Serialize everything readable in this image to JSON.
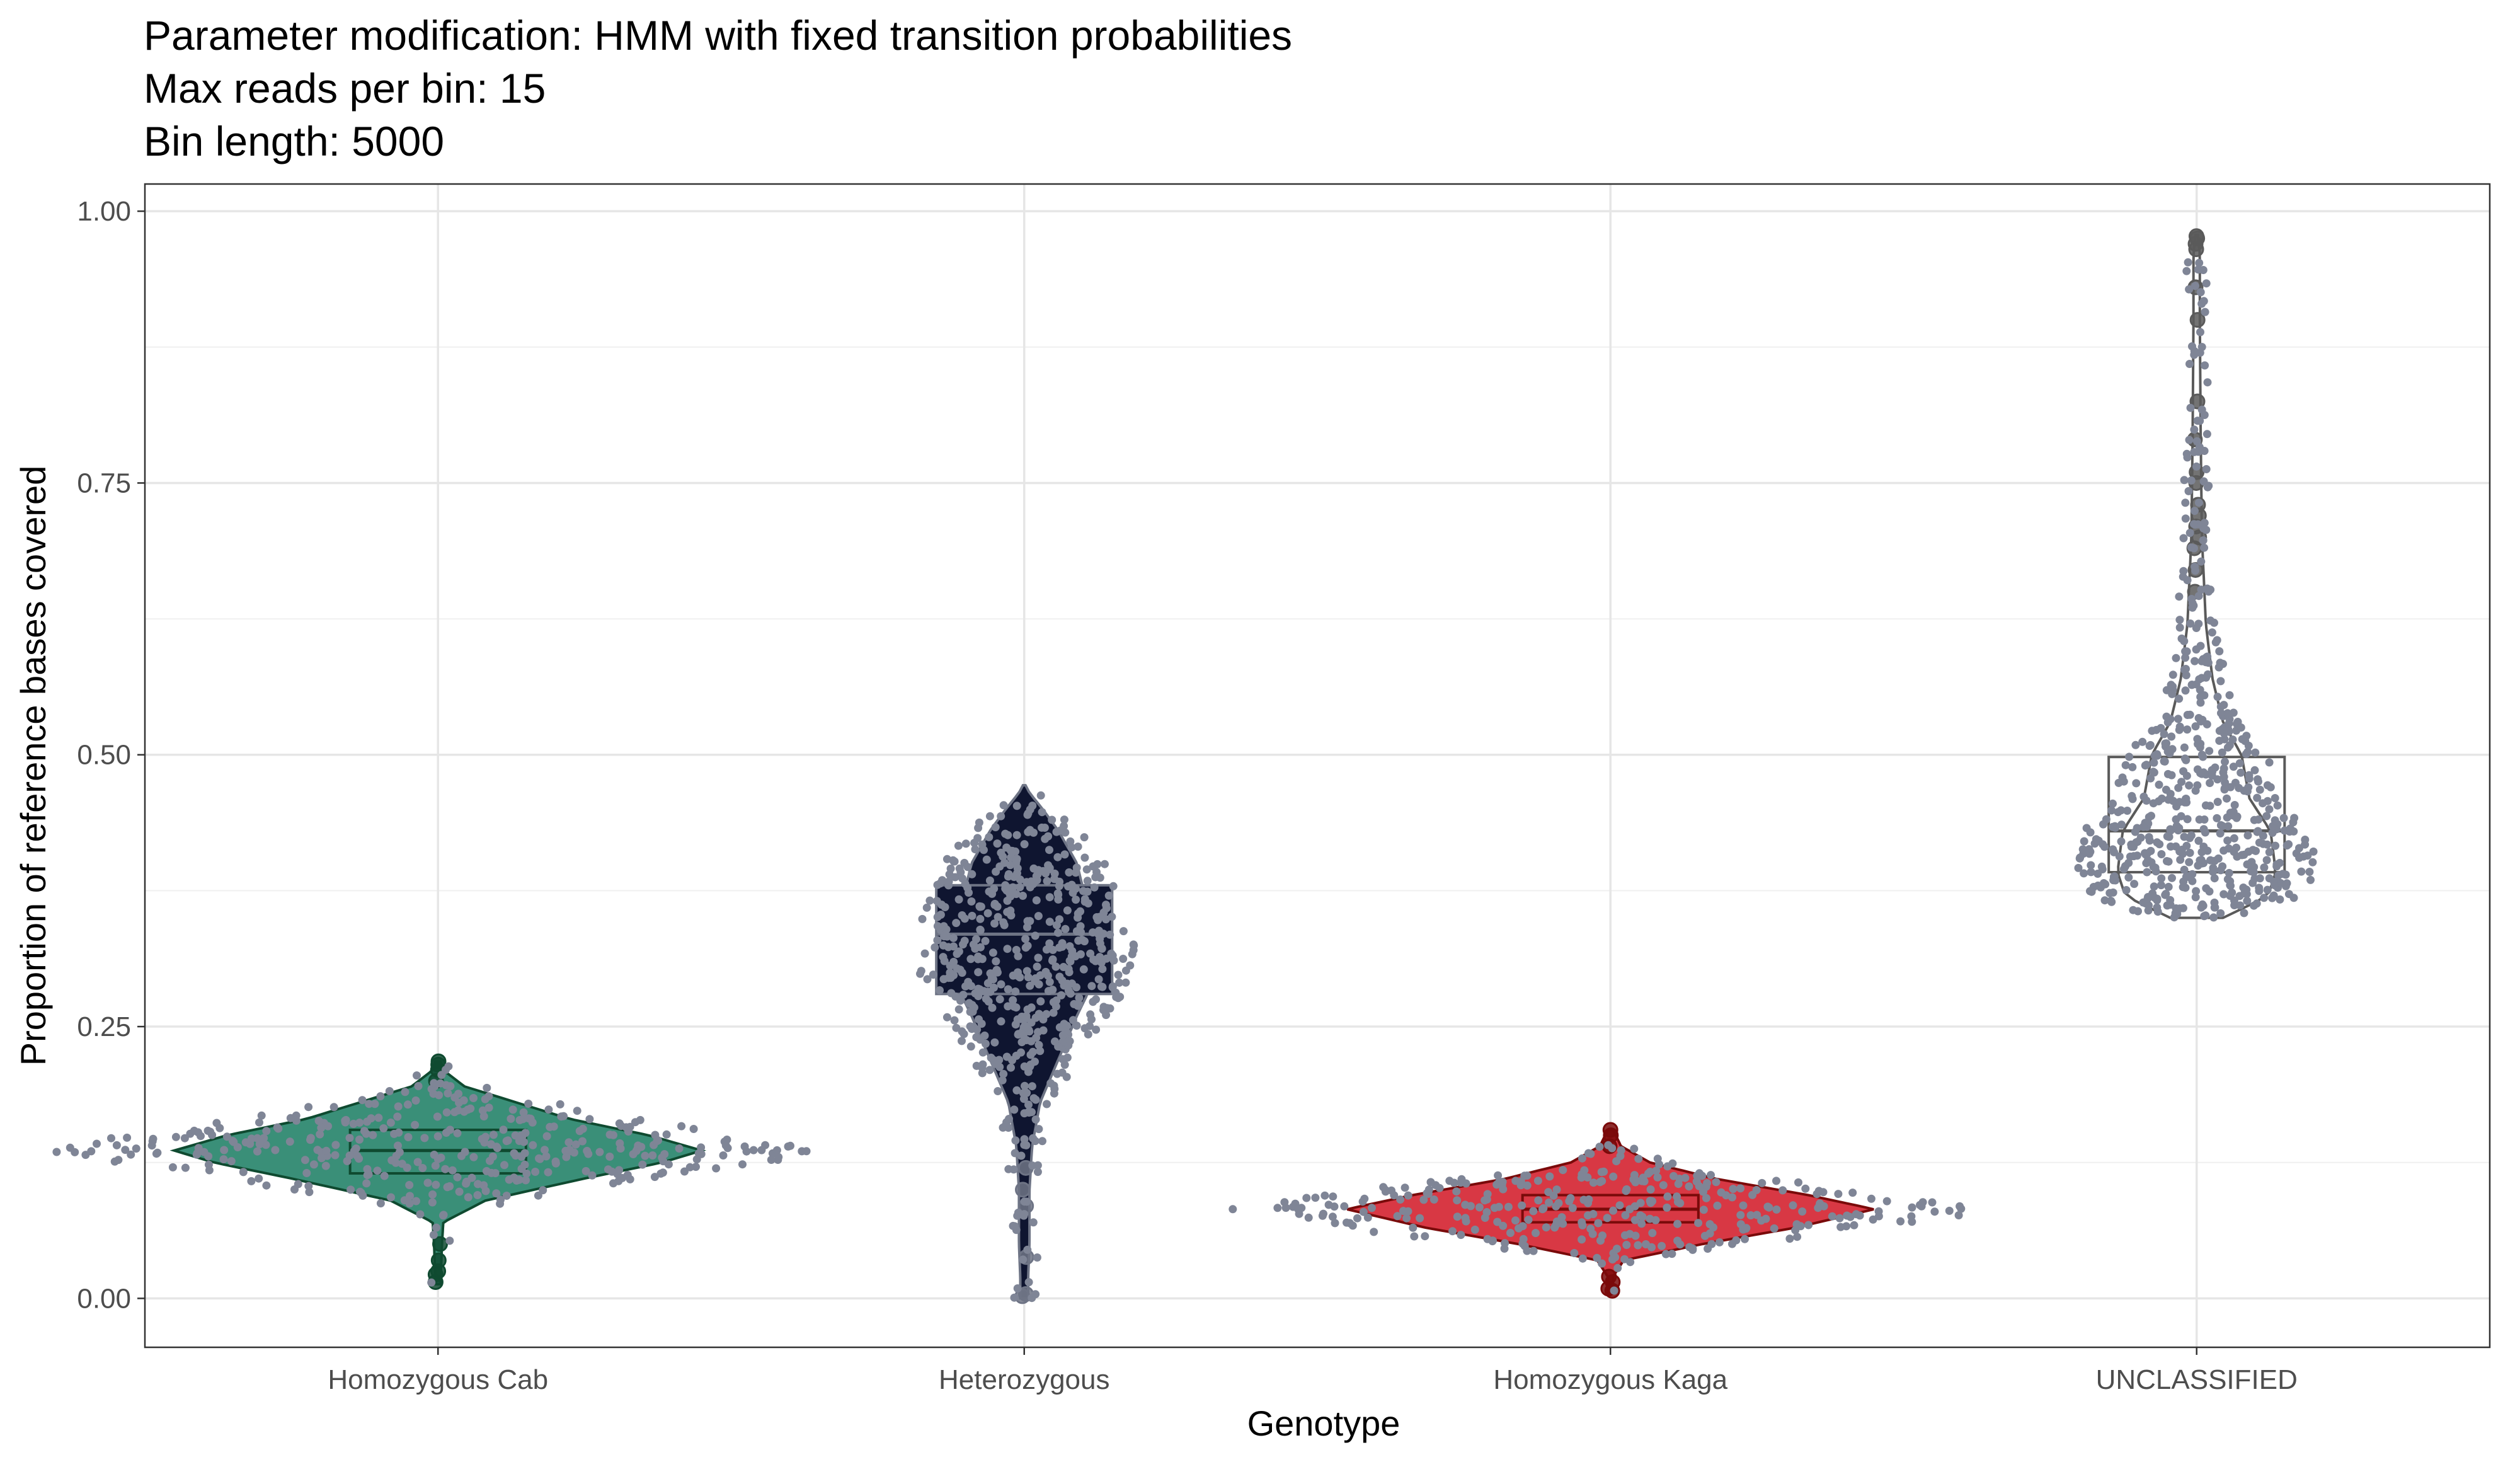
{
  "title_lines": [
    "Parameter modification: HMM with fixed transition probabilities",
    "Max reads per bin: 15",
    "Bin length: 5000"
  ],
  "chart_data": {
    "type": "violin",
    "xlabel": "Genotype",
    "ylabel": "Proportion of reference bases covered",
    "ylim": [
      -0.045,
      1.025
    ],
    "y_ticks": [
      0.0,
      0.25,
      0.5,
      0.75,
      1.0
    ],
    "y_tick_labels": [
      "0.00",
      "0.25",
      "0.50",
      "0.75",
      "1.00"
    ],
    "grid": true,
    "legend": "none",
    "point_color": "#7f8596",
    "categories": [
      "Homozygous Cab",
      "Heterozygous",
      "Homozygous Kaga",
      "UNCLASSIFIED"
    ],
    "series": [
      {
        "category": "Homozygous Cab",
        "fill": "#3a8f78",
        "outline": "#0f4a30",
        "box": {
          "q1": 0.115,
          "median": 0.136,
          "q3": 0.155
        },
        "density": [
          [
            0.013,
            0.01
          ],
          [
            0.03,
            0.012
          ],
          [
            0.05,
            0.015
          ],
          [
            0.07,
            0.02
          ],
          [
            0.09,
            0.18
          ],
          [
            0.11,
            0.55
          ],
          [
            0.125,
            0.85
          ],
          [
            0.136,
            1.0
          ],
          [
            0.15,
            0.8
          ],
          [
            0.165,
            0.5
          ],
          [
            0.18,
            0.3
          ],
          [
            0.195,
            0.1
          ],
          [
            0.21,
            0.02
          ],
          [
            0.218,
            0.01
          ]
        ],
        "outliers": [
          0.015,
          0.022,
          0.025,
          0.035,
          0.05,
          0.2,
          0.21,
          0.215,
          0.218
        ]
      },
      {
        "category": "Heterozygous",
        "fill": "#0f1530",
        "outline": "#6e7485",
        "box": {
          "q1": 0.28,
          "median": 0.335,
          "q3": 0.38
        },
        "density": [
          [
            0.0,
            0.015
          ],
          [
            0.02,
            0.015
          ],
          [
            0.05,
            0.02
          ],
          [
            0.1,
            0.02
          ],
          [
            0.14,
            0.03
          ],
          [
            0.18,
            0.06
          ],
          [
            0.22,
            0.13
          ],
          [
            0.26,
            0.2
          ],
          [
            0.28,
            0.24
          ],
          [
            0.31,
            0.27
          ],
          [
            0.34,
            0.27
          ],
          [
            0.38,
            0.22
          ],
          [
            0.4,
            0.2
          ],
          [
            0.43,
            0.13
          ],
          [
            0.45,
            0.07
          ],
          [
            0.465,
            0.02
          ],
          [
            0.472,
            0.005
          ]
        ],
        "outliers": [
          0.002,
          0.004,
          0.038,
          0.085,
          0.1,
          0.12
        ]
      },
      {
        "category": "Homozygous Kaga",
        "fill": "#d83844",
        "outline": "#7a0a0a",
        "box": {
          "q1": 0.07,
          "median": 0.082,
          "q3": 0.095
        },
        "density": [
          [
            0.005,
            0.01
          ],
          [
            0.02,
            0.01
          ],
          [
            0.035,
            0.05
          ],
          [
            0.05,
            0.35
          ],
          [
            0.065,
            0.7
          ],
          [
            0.082,
            1.0
          ],
          [
            0.095,
            0.75
          ],
          [
            0.11,
            0.4
          ],
          [
            0.125,
            0.15
          ],
          [
            0.14,
            0.04
          ],
          [
            0.155,
            0.01
          ]
        ],
        "outliers": [
          0.007,
          0.009,
          0.015,
          0.02,
          0.14,
          0.15,
          0.155
        ]
      },
      {
        "category": "UNCLASSIFIED",
        "fill": "#ffffff",
        "outline": "#5a5a5a",
        "box": {
          "q1": 0.392,
          "median": 0.43,
          "q3": 0.498
        },
        "density": [
          [
            0.35,
            0.1
          ],
          [
            0.37,
            0.27
          ],
          [
            0.392,
            0.3
          ],
          [
            0.43,
            0.28
          ],
          [
            0.46,
            0.2
          ],
          [
            0.5,
            0.17
          ],
          [
            0.53,
            0.1
          ],
          [
            0.57,
            0.06
          ],
          [
            0.62,
            0.035
          ],
          [
            0.7,
            0.02
          ],
          [
            0.8,
            0.015
          ],
          [
            0.9,
            0.012
          ],
          [
            0.96,
            0.012
          ],
          [
            0.978,
            0.005
          ]
        ],
        "outliers": [
          0.65,
          0.67,
          0.69,
          0.7,
          0.71,
          0.72,
          0.73,
          0.75,
          0.76,
          0.79,
          0.825,
          0.9,
          0.93,
          0.965,
          0.97,
          0.975,
          0.977
        ]
      }
    ]
  }
}
